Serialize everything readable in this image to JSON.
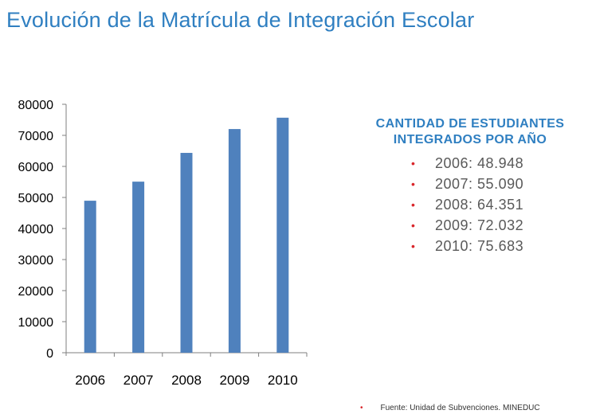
{
  "title": "Evolución de la Matrícula de Integración Escolar",
  "chart_data": {
    "type": "bar",
    "title": "",
    "xlabel": "",
    "ylabel": "",
    "categories": [
      "2006",
      "2007",
      "2008",
      "2009",
      "2010"
    ],
    "values": [
      48948,
      55090,
      64351,
      72032,
      75683
    ],
    "ylim": [
      0,
      80000
    ],
    "yticks": [
      "0",
      "10000",
      "20000",
      "30000",
      "40000",
      "50000",
      "60000",
      "70000",
      "80000"
    ],
    "grid": false,
    "legend": "none",
    "bar_color": "#4f81bd"
  },
  "panel": {
    "heading_line1": "CANTIDAD DE ESTUDIANTES",
    "heading_line2": "INTEGRADOS POR AÑO",
    "items": [
      "2006: 48.948",
      "2007: 55.090",
      "2008: 64.351",
      "2009: 72.032",
      "2010: 75.683"
    ],
    "bullet_color": "#d9262b"
  },
  "source": "Fuente: Unidad de Subvenciones. MINEDUC"
}
